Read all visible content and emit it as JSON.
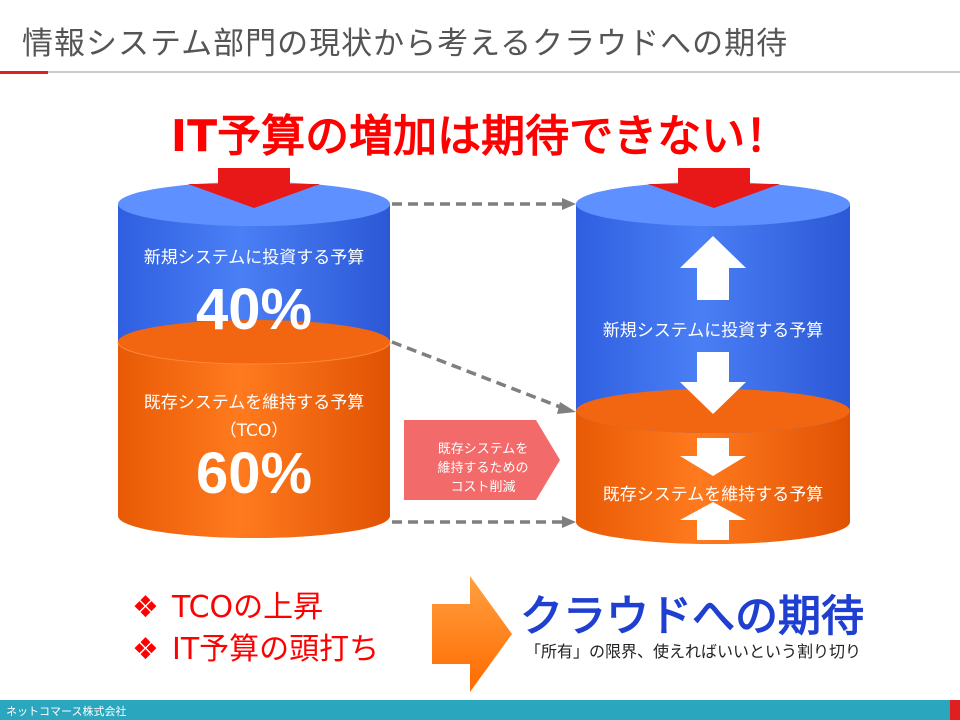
{
  "title": "情報システム部門の現状から考えるクラウドへの期待",
  "headline": "IT予算の増加は期待できない！",
  "left_cylinder": {
    "top_label": "新規システムに投資する予算",
    "top_percent": "40%",
    "bottom_label": "既存システムを維持する予算",
    "bottom_sub": "（TCO）",
    "bottom_percent": "60%"
  },
  "right_cylinder": {
    "top_label": "新規システムに投資する予算",
    "bottom_label": "既存システムを維持する予算"
  },
  "cost_box": {
    "line1": "既存システムを",
    "line2": "維持するための",
    "line3": "コスト削減"
  },
  "bullets": [
    {
      "mark": "❖",
      "text": "TCOの上昇"
    },
    {
      "mark": "❖",
      "text": "IT予算の頭打ち"
    }
  ],
  "expect": {
    "title": "クラウドへの期待",
    "subtitle": "「所有」の限界、使えればいいという割り切り"
  },
  "footer": "ネットコマース株式会社",
  "colors": {
    "blue": "#3a6ff0",
    "orange": "#f56a10",
    "red": "#ff0000",
    "pink": "#f36a6a",
    "footer": "#2aa6bf"
  }
}
